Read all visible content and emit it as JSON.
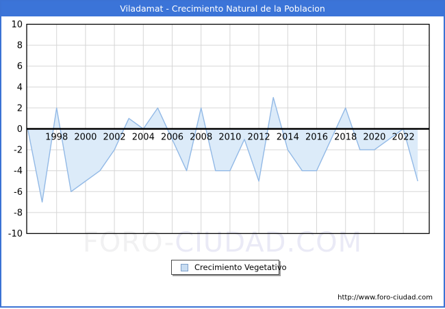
{
  "window": {
    "title": "Viladamat - Crecimiento Natural de la Poblacion",
    "accent_color": "#3b74d8",
    "border_color": "#3b72d4"
  },
  "chart_data": {
    "type": "area",
    "title": "Viladamat - Crecimiento Natural de la Poblacion",
    "xlabel": "",
    "ylabel": "",
    "x": [
      1996,
      1997,
      1998,
      1999,
      2000,
      2001,
      2002,
      2003,
      2004,
      2005,
      2006,
      2007,
      2008,
      2009,
      2010,
      2011,
      2012,
      2013,
      2014,
      2015,
      2016,
      2017,
      2018,
      2019,
      2020,
      2021,
      2022,
      2023
    ],
    "series": [
      {
        "name": "Crecimiento Vegetativo",
        "values": [
          0,
          -7,
          2,
          -6,
          -5,
          -4,
          -2,
          1,
          0,
          2,
          -1,
          -4,
          2,
          -4,
          -4,
          -1,
          -5,
          3,
          -2,
          -4,
          -4,
          -1,
          2,
          -2,
          -2,
          -1,
          0,
          -5
        ]
      }
    ],
    "ylim": [
      -10,
      10
    ],
    "xlim": [
      1996,
      2023.8
    ],
    "y_ticks": [
      10,
      8,
      6,
      4,
      2,
      0,
      -2,
      -4,
      -6,
      -8,
      -10
    ],
    "x_tick_labels": [
      "1998",
      "2000",
      "2002",
      "2004",
      "2006",
      "2008",
      "2010",
      "2012",
      "2014",
      "2016",
      "2018",
      "2020",
      "2022"
    ],
    "grid": true,
    "fill_to": "zero-baseline",
    "legend_position": "below-chart-center",
    "line_color": "#92b9e6",
    "fill_color": "#dcebf9",
    "grid_color": "#d6d6d6",
    "zero_axis_color": "#000000",
    "plot_border_color": "#000000",
    "tick_label_color": "#000000"
  },
  "legend": {
    "label": "Crecimiento Vegetativo",
    "swatch_fill": "#c8ddf2",
    "swatch_border": "#7d9fc9"
  },
  "watermark": {
    "part1": "FORO-",
    "part2": "CIUDAD.COM"
  },
  "footer": {
    "url": "http://www.foro-ciudad.com"
  }
}
